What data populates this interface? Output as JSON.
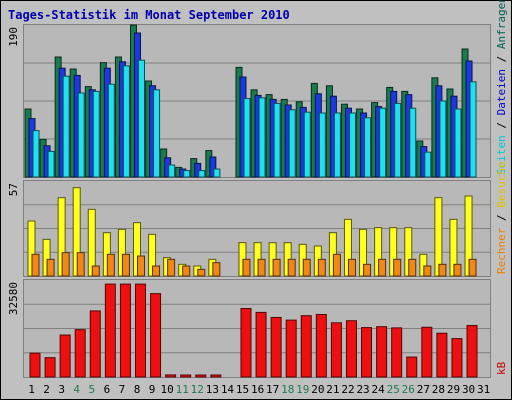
{
  "chart_data": {
    "type": "bar",
    "title": "Tages-Statistik im Monat September 2010",
    "days": [
      "1",
      "2",
      "3",
      "4",
      "5",
      "6",
      "7",
      "8",
      "9",
      "10",
      "11",
      "12",
      "13",
      "14",
      "15",
      "16",
      "17",
      "18",
      "19",
      "20",
      "21",
      "22",
      "23",
      "24",
      "25",
      "26",
      "27",
      "28",
      "29",
      "30",
      "31"
    ],
    "weekend_days": [
      "4",
      "5",
      "11",
      "12",
      "18",
      "19",
      "25",
      "26"
    ],
    "panels": [
      {
        "name": "top",
        "max_label": "190",
        "ylim": [
          0,
          190
        ],
        "right_labels": [
          {
            "text": "Seiten",
            "color": "#00c8d8"
          },
          {
            "text": " / ",
            "color": "#000000"
          },
          {
            "text": "Dateien",
            "color": "#0000cc"
          },
          {
            "text": " / ",
            "color": "#000000"
          },
          {
            "text": "Anfragen",
            "color": "#006050"
          }
        ],
        "series": [
          {
            "key": "anfragen",
            "color": "#1a7a50",
            "values": [
              85,
              47,
              150,
              135,
              113,
              143,
              150,
              190,
              120,
              35,
              12,
              23,
              33,
              0,
              137,
              109,
              103,
              97,
              94,
              117,
              114,
              91,
              85,
              93,
              112,
              107,
              45,
              124,
              110,
              160,
              0
            ]
          },
          {
            "key": "dateien",
            "color": "#1a3adf",
            "values": [
              73,
              39,
              136,
              127,
              109,
              136,
              144,
              180,
              114,
              24,
              10,
              17,
              25,
              0,
              125,
              102,
              97,
              90,
              87,
              104,
              101,
              86,
              80,
              88,
              107,
              103,
              38,
              114,
              101,
              145,
              0
            ]
          },
          {
            "key": "seiten",
            "color": "#20e0f0",
            "values": [
              58,
              32,
              126,
              105,
              107,
              116,
              139,
              146,
              109,
              15,
              8,
              8,
              10,
              0,
              98,
              99,
              92,
              84,
              81,
              80,
              80,
              80,
              74,
              86,
              92,
              86,
              31,
              95,
              85,
              119,
              0
            ]
          }
        ]
      },
      {
        "name": "middle",
        "max_label": "57",
        "ylim": [
          0,
          57
        ],
        "right_labels": [
          {
            "text": "Rechner",
            "color": "#ee8000"
          },
          {
            "text": " / ",
            "color": "#000000"
          },
          {
            "text": "Besuche",
            "color": "#e0c000"
          }
        ],
        "series": [
          {
            "key": "besuche",
            "color": "#ffff20",
            "values": [
              33,
              22,
              47,
              53,
              40,
              26,
              28,
              32,
              25,
              11,
              7,
              6,
              10,
              0,
              20,
              20,
              20,
              20,
              19,
              18,
              26,
              34,
              28,
              29,
              29,
              29,
              13,
              47,
              34,
              48,
              0
            ]
          },
          {
            "key": "rechner",
            "color": "#f08818",
            "values": [
              13,
              10,
              14,
              14,
              6,
              13,
              13,
              12,
              6,
              10,
              6,
              4,
              8,
              0,
              10,
              10,
              10,
              10,
              10,
              10,
              13,
              10,
              7,
              10,
              10,
              10,
              6,
              7,
              7,
              10,
              0
            ]
          }
        ]
      },
      {
        "name": "bottom",
        "max_label": "32580",
        "ylim": [
          0,
          32580
        ],
        "right_labels": [
          {
            "text": "kB",
            "color": "#cc0000"
          }
        ],
        "series": [
          {
            "key": "kb",
            "color": "#ee1010",
            "values": [
              8000,
              6500,
              14100,
              15900,
              22200,
              31200,
              31200,
              31200,
              28000,
              700,
              350,
              350,
              350,
              0,
              23000,
              21700,
              20000,
              19100,
              20600,
              21000,
              18200,
              18900,
              16600,
              16900,
              16500,
              6700,
              16700,
              14700,
              12900,
              17300,
              0
            ]
          }
        ]
      }
    ]
  }
}
